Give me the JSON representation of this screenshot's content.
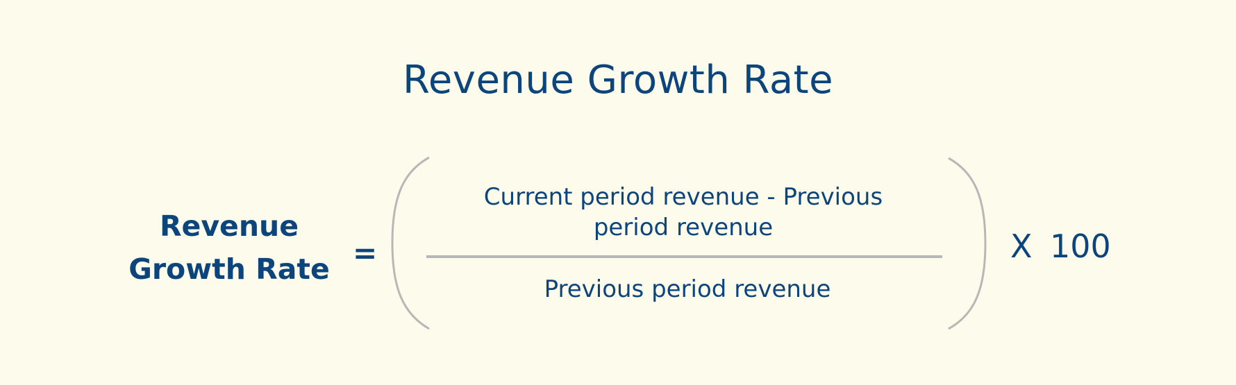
{
  "title": "Revenue Growth Rate",
  "formula": {
    "lhs_line1": "Revenue",
    "lhs_line2": "Growth Rate",
    "equals": "=",
    "numerator_line1": "Current period revenue - Previous",
    "numerator_line2": "period revenue",
    "denominator": "Previous period revenue",
    "multiply": "X",
    "factor": "100"
  },
  "colors": {
    "background": "#fdfbeb",
    "text": "#0c447c",
    "lines": "#b7b7b7"
  }
}
